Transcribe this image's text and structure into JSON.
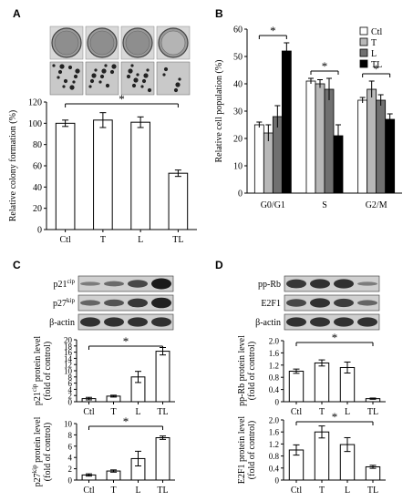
{
  "panels": [
    {
      "letter": "A"
    },
    {
      "letter": "B"
    },
    {
      "letter": "C"
    },
    {
      "letter": "D"
    }
  ],
  "colors": {
    "Ctl": "#ffffff",
    "T": "#b8b8b8",
    "L": "#707070",
    "TL": "#000000"
  },
  "blots_C": [
    "p21cip",
    "p27kip",
    "β-actin"
  ],
  "blots_D": [
    "pp-Rb",
    "E2F1",
    "β-actin"
  ],
  "chart_data": [
    {
      "id": "A",
      "type": "bar",
      "title": "",
      "categories": [
        "Ctl",
        "T",
        "L",
        "TL"
      ],
      "values": [
        100,
        103,
        101,
        53
      ],
      "errors": [
        3,
        7,
        5,
        3
      ],
      "ylabel": "Relative colony formation (%)",
      "ylim": [
        0,
        120
      ],
      "yticks": [
        0,
        20,
        40,
        60,
        80,
        100,
        120
      ],
      "significance": [
        {
          "from": "Ctl",
          "to": "TL",
          "label": "*"
        }
      ]
    },
    {
      "id": "B",
      "type": "bar",
      "title": "",
      "categories": [
        "G0/G1",
        "S",
        "G2/M"
      ],
      "series": [
        {
          "name": "Ctl",
          "values": [
            25,
            41,
            34
          ],
          "errors": [
            1,
            1,
            1
          ]
        },
        {
          "name": "T",
          "values": [
            22,
            40,
            38
          ],
          "errors": [
            3,
            1.5,
            3
          ]
        },
        {
          "name": "L",
          "values": [
            28,
            38,
            34
          ],
          "errors": [
            4,
            4,
            2
          ]
        },
        {
          "name": "TL",
          "values": [
            52,
            21,
            27
          ],
          "errors": [
            3,
            4,
            2
          ]
        }
      ],
      "ylabel": "Relative cell population (%)",
      "ylim": [
        0,
        60
      ],
      "yticks": [
        0,
        10,
        20,
        30,
        40,
        50,
        60
      ],
      "legend": "top-right",
      "significance": [
        {
          "group": "G0/G1",
          "label": "*"
        },
        {
          "group": "S",
          "label": "*"
        },
        {
          "group": "G2/M",
          "label": "*"
        }
      ]
    },
    {
      "id": "C1",
      "type": "bar",
      "title": "",
      "categories": [
        "Ctl",
        "T",
        "L",
        "TL"
      ],
      "values": [
        1,
        1.8,
        8,
        16.3
      ],
      "errors": [
        0.4,
        0.3,
        1.8,
        1.2
      ],
      "ylabel_main": "p21",
      "ylabel_sup": "cip",
      "ylabel_rest": " protein level",
      "ylabel2": "(fold of control)",
      "ylim": [
        0,
        20
      ],
      "yticks": [
        0,
        2,
        4,
        6,
        8,
        10,
        12,
        14,
        16,
        18,
        20
      ],
      "significance": [
        {
          "from": "Ctl",
          "to": "TL",
          "label": "*"
        }
      ]
    },
    {
      "id": "C2",
      "type": "bar",
      "title": "",
      "categories": [
        "Ctl",
        "T",
        "L",
        "TL"
      ],
      "values": [
        0.9,
        1.6,
        3.8,
        7.5
      ],
      "errors": [
        0.2,
        0.2,
        1.3,
        0.3
      ],
      "ylabel_main": "p27",
      "ylabel_sup": "kip",
      "ylabel_rest": " protein level",
      "ylabel2": "(fold of control)",
      "ylim": [
        0,
        10
      ],
      "yticks": [
        0,
        2,
        4,
        6,
        8,
        10
      ],
      "significance": [
        {
          "from": "Ctl",
          "to": "TL",
          "label": "*"
        }
      ]
    },
    {
      "id": "D1",
      "type": "bar",
      "title": "",
      "categories": [
        "Ctl",
        "T",
        "L",
        "TL"
      ],
      "values": [
        1.0,
        1.27,
        1.12,
        0.1
      ],
      "errors": [
        0.07,
        0.1,
        0.18,
        0.02
      ],
      "ylabel_main": "pp-Rb protein level",
      "ylabel2": "(fold of control)",
      "ylim": [
        0,
        2.0
      ],
      "yticks": [
        "0",
        "0.4",
        "0.8",
        "1.2",
        "1.6",
        "2.0"
      ],
      "significance": [
        {
          "from": "Ctl",
          "to": "TL",
          "label": "*"
        }
      ]
    },
    {
      "id": "D2",
      "type": "bar",
      "title": "",
      "categories": [
        "Ctl",
        "T",
        "L",
        "TL"
      ],
      "values": [
        1.0,
        1.6,
        1.18,
        0.44
      ],
      "errors": [
        0.17,
        0.2,
        0.23,
        0.05
      ],
      "ylabel_main": "E2F1 protein level",
      "ylabel2": "(fold of control)",
      "ylim": [
        0,
        2.0
      ],
      "yticks": [
        "0",
        "0.4",
        "0.8",
        "1.2",
        "1.6",
        "2.0"
      ],
      "significance": [
        {
          "from": "Ctl",
          "to": "TL",
          "label": "*"
        }
      ]
    }
  ]
}
